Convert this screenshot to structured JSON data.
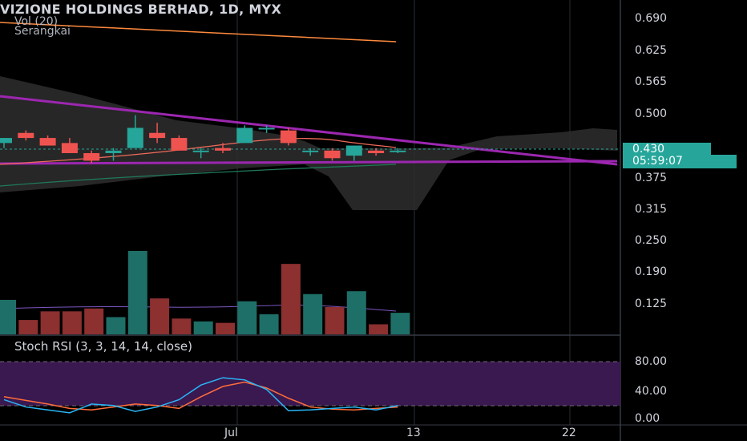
{
  "header": {
    "title": "VIZIONE HOLDINGS BERHAD, 1D, MYX",
    "volume_label": "Vol (20)",
    "series_label": "Serangkai"
  },
  "indicator": {
    "label": "Stoch RSI (3, 3, 14, 14, close)"
  },
  "price_axis": {
    "ticks": [
      "0.690",
      "0.625",
      "0.565",
      "0.500",
      "0.375",
      "0.315",
      "0.250",
      "0.190",
      "0.125"
    ],
    "current_price": "0.430",
    "countdown": "05:59:07"
  },
  "stoch_axis": {
    "ticks": [
      "80.00",
      "40.00",
      "0.00"
    ]
  },
  "time_axis": {
    "ticks": [
      "Jul",
      "13",
      "22"
    ]
  },
  "colors": {
    "up": "#26a69a",
    "down": "#ef5350",
    "trendline": "#9c27b0",
    "background": "#000000"
  },
  "chart_data": {
    "type": "candlestick",
    "candles": [
      {
        "open": 0.445,
        "high": 0.455,
        "low": 0.435,
        "close": 0.455
      },
      {
        "open": 0.465,
        "high": 0.47,
        "low": 0.45,
        "close": 0.455
      },
      {
        "open": 0.455,
        "high": 0.46,
        "low": 0.44,
        "close": 0.44
      },
      {
        "open": 0.445,
        "high": 0.455,
        "low": 0.425,
        "close": 0.425
      },
      {
        "open": 0.425,
        "high": 0.43,
        "low": 0.405,
        "close": 0.41
      },
      {
        "open": 0.425,
        "high": 0.435,
        "low": 0.41,
        "close": 0.43
      },
      {
        "open": 0.435,
        "high": 0.5,
        "low": 0.435,
        "close": 0.475
      },
      {
        "open": 0.465,
        "high": 0.485,
        "low": 0.445,
        "close": 0.455
      },
      {
        "open": 0.455,
        "high": 0.46,
        "low": 0.43,
        "close": 0.43
      },
      {
        "open": 0.43,
        "high": 0.435,
        "low": 0.415,
        "close": 0.43
      },
      {
        "open": 0.435,
        "high": 0.445,
        "low": 0.425,
        "close": 0.43
      },
      {
        "open": 0.445,
        "high": 0.48,
        "low": 0.445,
        "close": 0.475
      },
      {
        "open": 0.475,
        "high": 0.48,
        "low": 0.465,
        "close": 0.475
      },
      {
        "open": 0.47,
        "high": 0.475,
        "low": 0.44,
        "close": 0.445
      },
      {
        "open": 0.43,
        "high": 0.435,
        "low": 0.42,
        "close": 0.43
      },
      {
        "open": 0.43,
        "high": 0.435,
        "low": 0.41,
        "close": 0.415
      },
      {
        "open": 0.42,
        "high": 0.44,
        "low": 0.41,
        "close": 0.44
      },
      {
        "open": 0.43,
        "high": 0.435,
        "low": 0.42,
        "close": 0.425
      },
      {
        "open": 0.43,
        "high": 0.435,
        "low": 0.425,
        "close": 0.43
      }
    ],
    "volume": [
      24,
      10,
      16,
      16,
      18,
      12,
      58,
      25,
      11,
      9,
      8,
      23,
      14,
      49,
      28,
      19,
      30,
      7,
      15
    ],
    "stoch_k": [
      28,
      18,
      14,
      10,
      22,
      20,
      12,
      18,
      28,
      48,
      58,
      55,
      42,
      13,
      14,
      16,
      18,
      14,
      20
    ],
    "stoch_d": [
      32,
      27,
      22,
      16,
      14,
      18,
      22,
      20,
      16,
      32,
      46,
      52,
      44,
      30,
      18,
      15,
      14,
      16,
      18
    ],
    "stoch_bands": [
      80,
      20
    ],
    "price_range": [
      0.06,
      0.72
    ]
  }
}
